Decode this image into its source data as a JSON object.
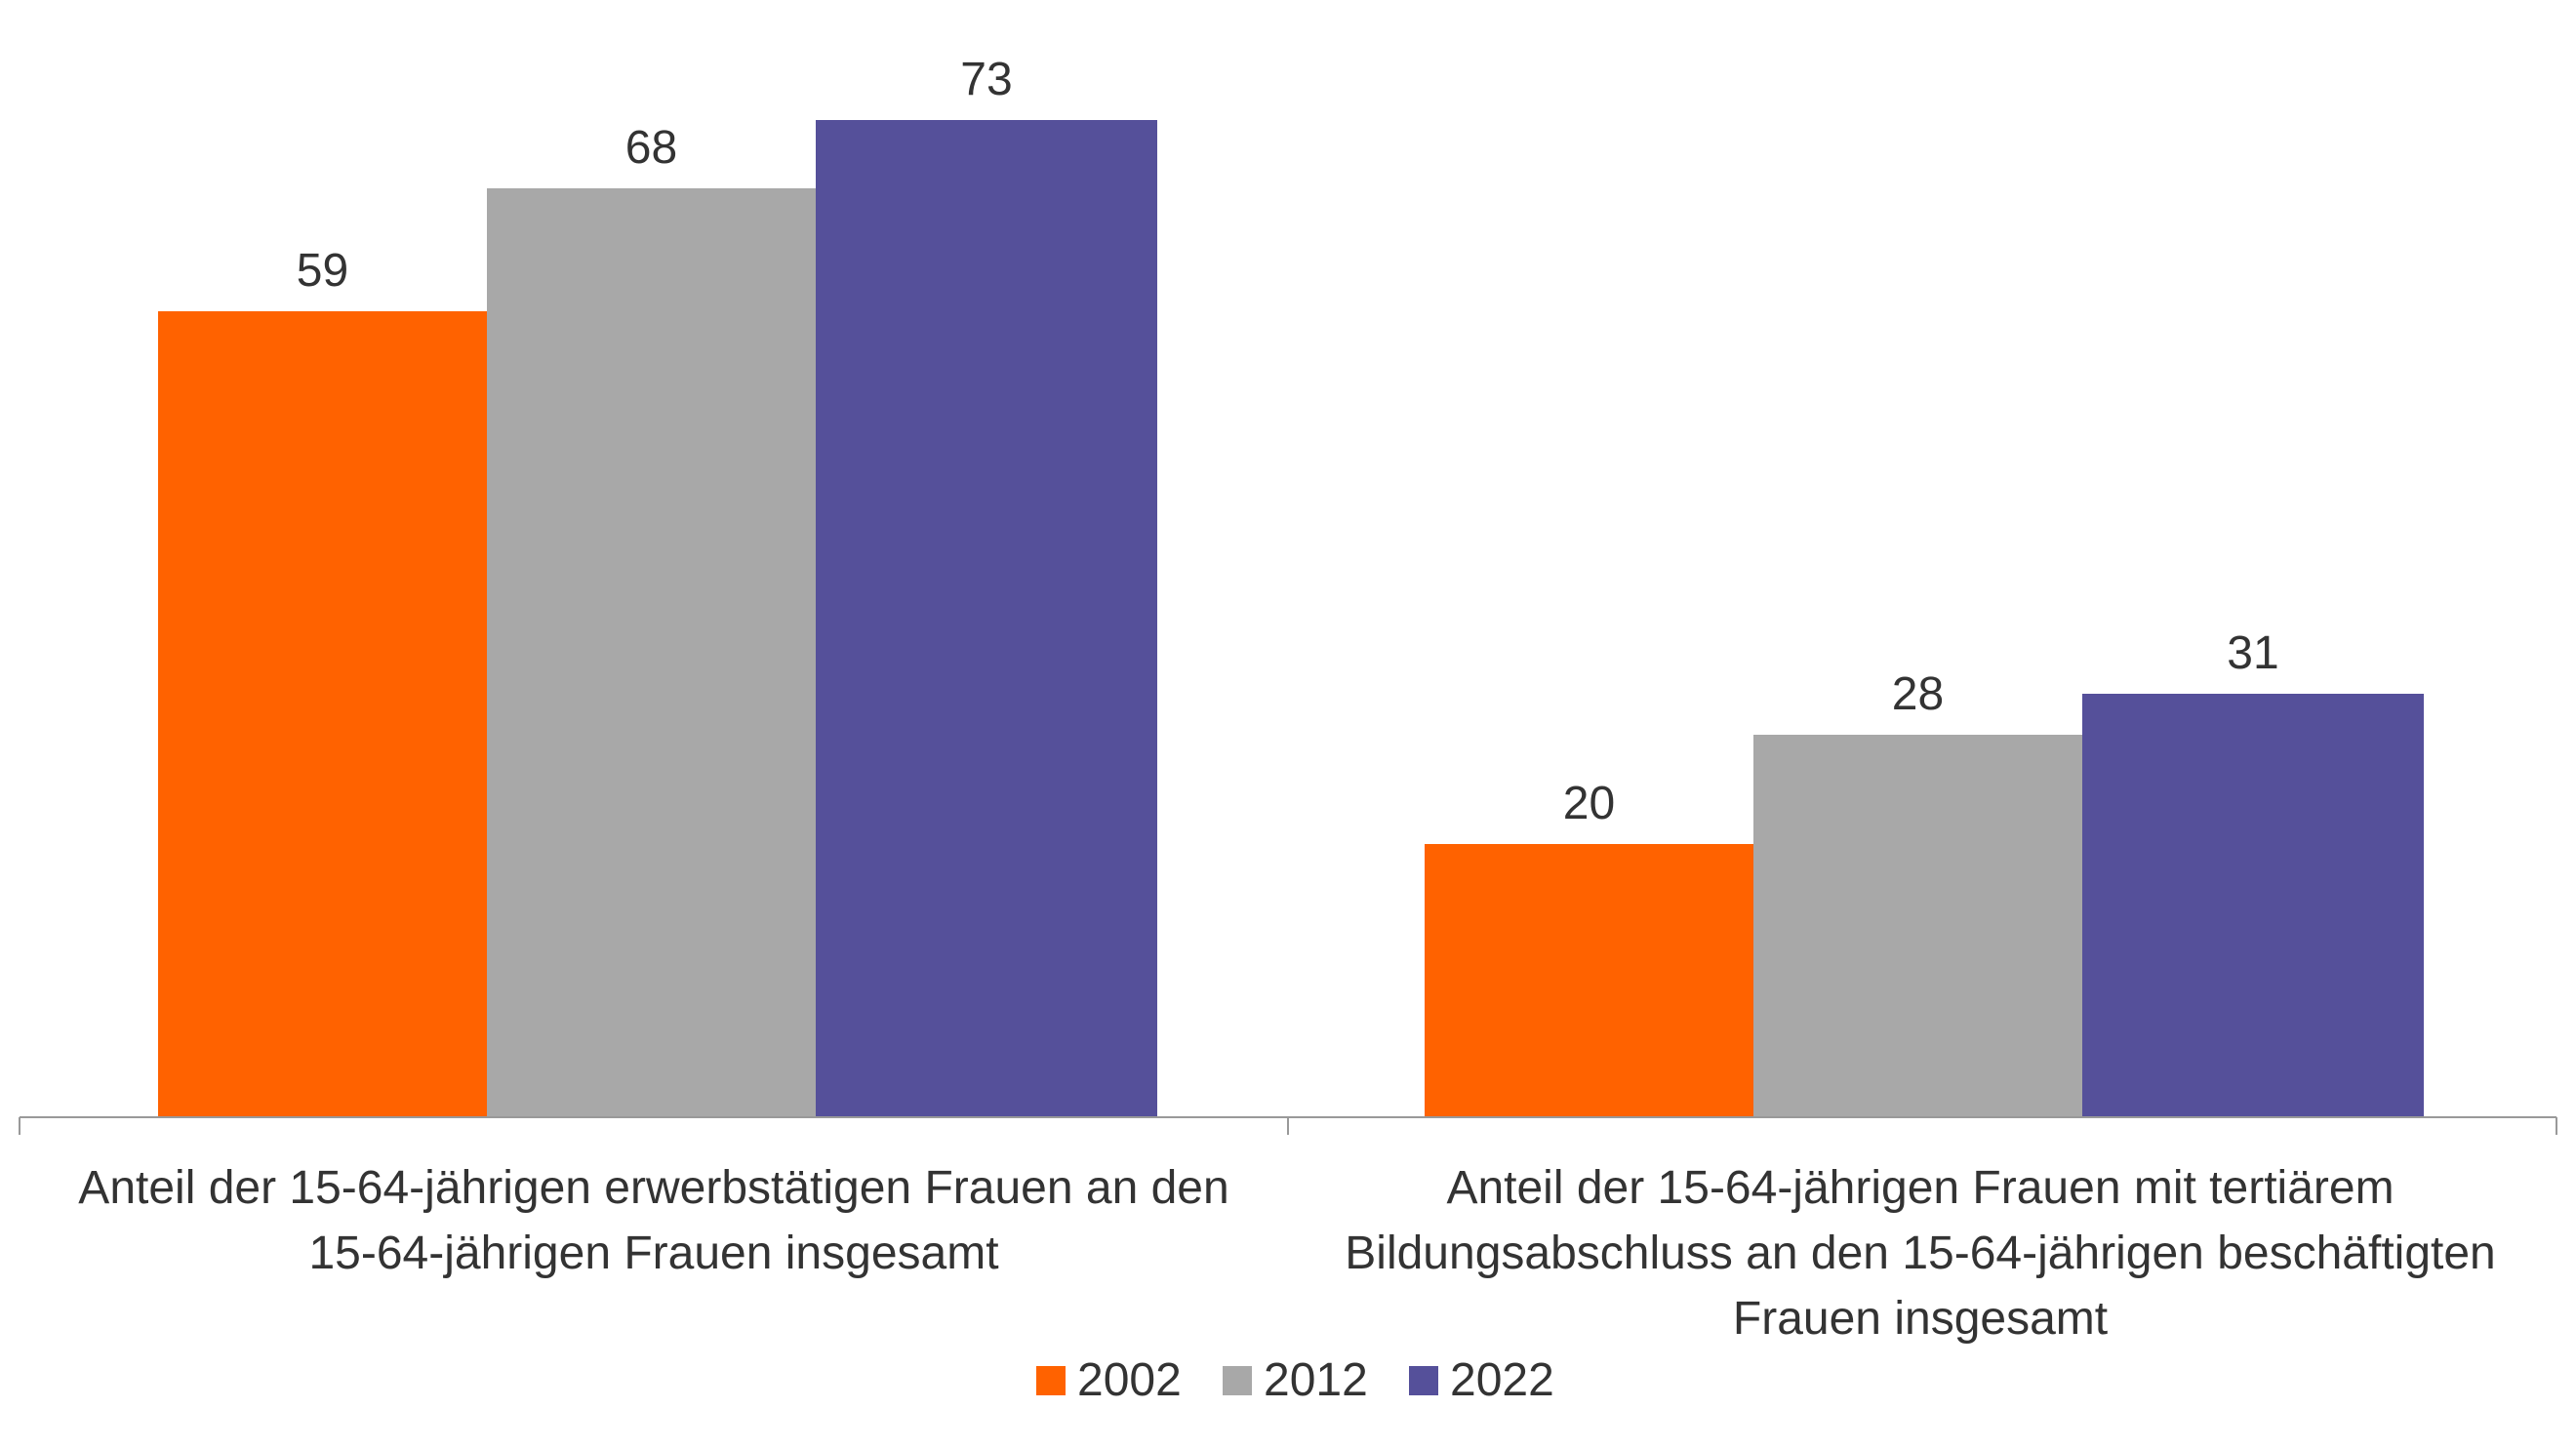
{
  "colors": {
    "series_2002": "#FF6200",
    "series_2012": "#A8A8A8",
    "series_2022": "#55509A",
    "axis": "#999999",
    "text": "#333333"
  },
  "chart_data": {
    "type": "bar",
    "title": "",
    "xlabel": "",
    "ylabel": "",
    "ylim": [
      0,
      80
    ],
    "grid": false,
    "legend_position": "bottom-center",
    "categories": [
      "Anteil der 15-64-jährigen erwerbstätigen Frauen an den 15-64-jährigen Frauen insgesamt",
      "Anteil der 15-64-jährigen Frauen mit tertiärem Bildungsabschluss an den 15-64-jährigen beschäftigten Frauen insgesamt"
    ],
    "category_label_lines": [
      [
        "Anteil der 15-64-jährigen erwerbstätigen Frauen an den",
        "15-64-jährigen Frauen insgesamt"
      ],
      [
        "Anteil der 15-64-jährigen Frauen mit tertiärem",
        "Bildungsabschluss an den 15-64-jährigen beschäftigten",
        "Frauen insgesamt"
      ]
    ],
    "series": [
      {
        "name": "2002",
        "values": [
          59,
          20
        ],
        "color": "#FF6200"
      },
      {
        "name": "2012",
        "values": [
          68,
          28
        ],
        "color": "#A8A8A8"
      },
      {
        "name": "2022",
        "values": [
          73,
          31
        ],
        "color": "#55509A"
      }
    ]
  }
}
